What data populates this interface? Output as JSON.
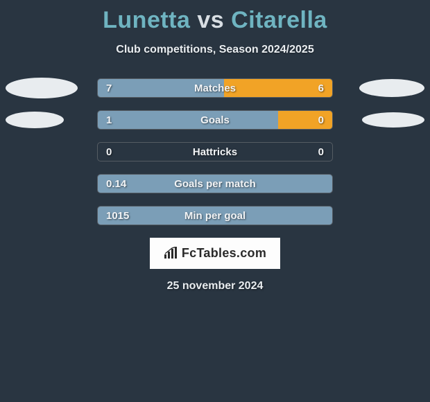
{
  "title": {
    "player1": "Lunetta",
    "vs": "vs",
    "player2": "Citarella"
  },
  "subtitle": "Club competitions, Season 2024/2025",
  "colors": {
    "player1_bar": "#7b9eb7",
    "player2_bar": "#f1a326",
    "background": "#293541",
    "track_border": "#555c63",
    "avatar_fill": "#e8ecef"
  },
  "avatars": {
    "row0": {
      "left_w": 104,
      "left_h": 30,
      "right_w": 94,
      "right_h": 26
    },
    "row1": {
      "left_w": 84,
      "left_h": 24,
      "right_w": 90,
      "right_h": 22
    }
  },
  "bars": [
    {
      "label": "Matches",
      "left_value": "7",
      "right_value": "6",
      "left_raw": 7,
      "right_raw": 6,
      "left_pct": 53.8,
      "right_pct": 46.2,
      "show_left_avatar": true,
      "show_right_avatar": true
    },
    {
      "label": "Goals",
      "left_value": "1",
      "right_value": "0",
      "left_raw": 1,
      "right_raw": 0,
      "left_pct": 77,
      "right_pct": 23,
      "show_left_avatar": true,
      "show_right_avatar": true
    },
    {
      "label": "Hattricks",
      "left_value": "0",
      "right_value": "0",
      "left_raw": 0,
      "right_raw": 0,
      "left_pct": 0,
      "right_pct": 0,
      "show_left_avatar": false,
      "show_right_avatar": false
    },
    {
      "label": "Goals per match",
      "left_value": "0.14",
      "right_value": "",
      "left_raw": 0.14,
      "right_raw": 0,
      "left_pct": 100,
      "right_pct": 0,
      "show_left_avatar": false,
      "show_right_avatar": false
    },
    {
      "label": "Min per goal",
      "left_value": "1015",
      "right_value": "",
      "left_raw": 1015,
      "right_raw": 0,
      "left_pct": 100,
      "right_pct": 0,
      "show_left_avatar": false,
      "show_right_avatar": false
    }
  ],
  "footer": {
    "logo_text": "FcTables.com",
    "date": "25 november 2024"
  }
}
